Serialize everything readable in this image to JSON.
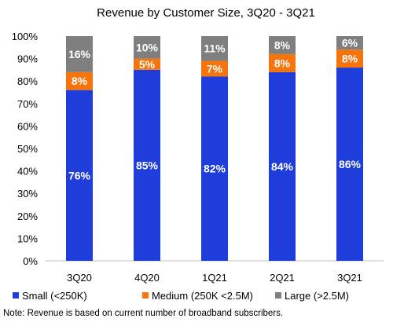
{
  "chart_data": {
    "type": "bar",
    "stacked": true,
    "title": "Revenue by Customer Size, 3Q20 - 3Q21",
    "categories": [
      "3Q20",
      "4Q20",
      "1Q21",
      "2Q21",
      "3Q21"
    ],
    "series": [
      {
        "name": "Small (<250K)",
        "color": "#1f3ddb",
        "values": [
          76,
          85,
          82,
          84,
          86
        ]
      },
      {
        "name": "Medium (250K <2.5M)",
        "color": "#f5740c",
        "values": [
          8,
          5,
          7,
          8,
          8
        ]
      },
      {
        "name": "Large (>2.5M)",
        "color": "#7f7f7f",
        "values": [
          16,
          10,
          11,
          8,
          6
        ]
      }
    ],
    "value_suffix": "%",
    "ylim": [
      0,
      100
    ],
    "yticks": [
      "0%",
      "10%",
      "20%",
      "30%",
      "40%",
      "50%",
      "60%",
      "70%",
      "80%",
      "90%",
      "100%"
    ],
    "grid": false,
    "legend_position": "bottom"
  },
  "note": "Note: Revenue is based on current number of broadband subscribers."
}
